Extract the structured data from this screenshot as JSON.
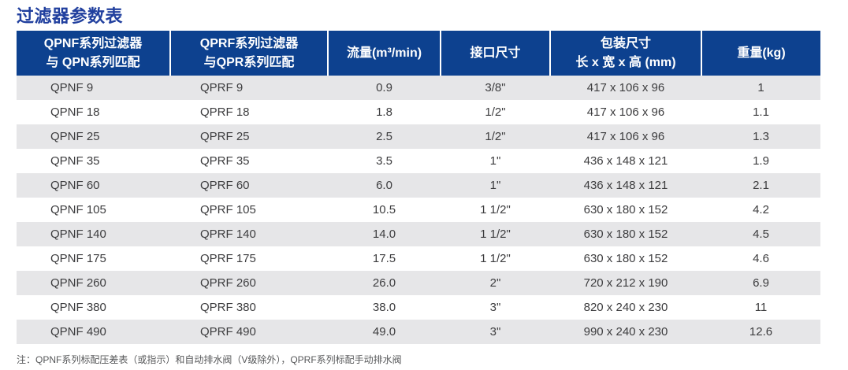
{
  "page": {
    "title": "过滤器参数表",
    "note": "注：QPNF系列标配压差表（或指示）和自动排水阀（V级除外），QPRF系列标配手动排水阀"
  },
  "colors": {
    "header_background": "#0d418f",
    "title_text": "#203f9e",
    "stripe_row": "#e6e6e8",
    "body_text": "#3c3c3e"
  },
  "table": {
    "headers": [
      "QPNF系列过滤器\n与 QPN系列匹配",
      "QPRF系列过滤器\n与QPR系列匹配",
      "流量(m³/min)",
      "接口尺寸",
      "包装尺寸\n长 x 宽 x 高 (mm)",
      "重量(kg)"
    ],
    "rows": [
      [
        "QPNF 9",
        "QPRF 9",
        "0.9",
        "3/8\"",
        "417 x 106 x 96",
        "1"
      ],
      [
        "QPNF 18",
        "QPRF 18",
        "1.8",
        "1/2\"",
        "417 x 106 x 96",
        "1.1"
      ],
      [
        "QPNF 25",
        "QPRF 25",
        "2.5",
        "1/2\"",
        "417 x 106 x 96",
        "1.3"
      ],
      [
        "QPNF 35",
        "QPRF 35",
        "3.5",
        "1\"",
        "436 x 148 x 121",
        "1.9"
      ],
      [
        "QPNF 60",
        "QPRF 60",
        "6.0",
        "1\"",
        "436 x 148 x 121",
        "2.1"
      ],
      [
        "QPNF 105",
        "QPRF 105",
        "10.5",
        "1 1/2\"",
        "630 x 180 x 152",
        "4.2"
      ],
      [
        "QPNF 140",
        "QPRF 140",
        "14.0",
        "1 1/2\"",
        "630 x 180 x 152",
        "4.5"
      ],
      [
        "QPNF 175",
        "QPRF 175",
        "17.5",
        "1 1/2\"",
        "630 x 180 x 152",
        "4.6"
      ],
      [
        "QPNF 260",
        "QPRF 260",
        "26.0",
        "2\"",
        "720 x 212 x 190",
        "6.9"
      ],
      [
        "QPNF 380",
        "QPRF 380",
        "38.0",
        "3\"",
        "820 x 240 x 230",
        "11"
      ],
      [
        "QPNF 490",
        "QPRF 490",
        "49.0",
        "3\"",
        "990 x 240 x 230",
        "12.6"
      ]
    ]
  }
}
